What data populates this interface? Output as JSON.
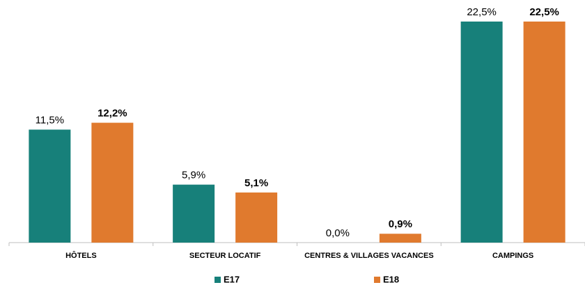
{
  "chart_data": {
    "type": "bar",
    "categories": [
      "HÔTELS",
      "SECTEUR LOCATIF",
      "CENTRES & VILLAGES VACANCES",
      "CAMPINGS"
    ],
    "series": [
      {
        "name": "E17",
        "color": "#17807a",
        "values": [
          11.5,
          5.9,
          0.0,
          22.5
        ],
        "value_labels": [
          "11,5%",
          "5,9%",
          "0,0%",
          "22,5%"
        ]
      },
      {
        "name": "E18",
        "color": "#e07a2e",
        "values": [
          12.2,
          5.1,
          0.9,
          22.5
        ],
        "value_labels": [
          "12,2%",
          "5,1%",
          "0,9%",
          "22,5%"
        ]
      }
    ]
  }
}
